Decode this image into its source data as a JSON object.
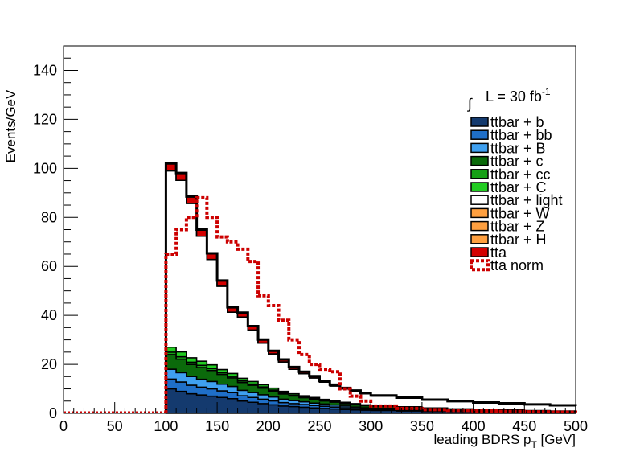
{
  "chart_data": {
    "type": "area",
    "xlabel_main": "leading BDRS p",
    "xlabel_sub": "T",
    "xlabel_unit": " [GeV]",
    "ylabel": "Events/GeV",
    "xlim": [
      0,
      500
    ],
    "ylim": [
      0,
      150
    ],
    "x_ticks": [
      "0",
      "50",
      "100",
      "150",
      "200",
      "250",
      "300",
      "350",
      "400",
      "450",
      "500"
    ],
    "y_ticks": [
      "0",
      "20",
      "40",
      "60",
      "80",
      "100",
      "120",
      "140"
    ],
    "lumi_prefix": "L = 30 fb",
    "lumi_exp": "-1",
    "legend_position": "top-right",
    "grid": false,
    "x": [
      100,
      110,
      120,
      130,
      140,
      150,
      160,
      170,
      180,
      190,
      200,
      210,
      220,
      230,
      240,
      250,
      260,
      270,
      280,
      290,
      300,
      325,
      350,
      375,
      400,
      425,
      450,
      475,
      500
    ],
    "series": [
      {
        "name": "ttbar + b",
        "color": "#143a6e",
        "values": [
          10,
          9,
          8,
          7.5,
          7,
          6.5,
          6,
          5,
          4.5,
          4,
          3.5,
          3,
          2.8,
          2.5,
          2.2,
          2,
          1.8,
          1.6,
          1.4,
          1.3,
          1.2,
          1,
          0.8,
          0.7,
          0.6,
          0.5,
          0.4,
          0.35,
          0.3
        ]
      },
      {
        "name": "ttbar + bb",
        "color": "#1f6fc8",
        "values": [
          4,
          3.8,
          3.5,
          3.2,
          3,
          2.7,
          2.5,
          2.2,
          2,
          1.8,
          1.6,
          1.4,
          1.2,
          1.1,
          1,
          0.9,
          0.8,
          0.7,
          0.6,
          0.5,
          0.45,
          0.4,
          0.3,
          0.25,
          0.2,
          0.2,
          0.15,
          0.12,
          0.1
        ]
      },
      {
        "name": "ttbar + B",
        "color": "#3fa0f0",
        "values": [
          4,
          3.8,
          3.5,
          3.2,
          3,
          2.7,
          2.5,
          2.2,
          2,
          1.8,
          1.6,
          1.4,
          1.2,
          1.1,
          1,
          0.9,
          0.8,
          0.7,
          0.6,
          0.5,
          0.45,
          0.4,
          0.3,
          0.25,
          0.2,
          0.2,
          0.15,
          0.12,
          0.1
        ]
      },
      {
        "name": "ttbar + c",
        "color": "#0b6a0b",
        "values": [
          6,
          5.5,
          5,
          4.8,
          4.5,
          4,
          3.5,
          3.2,
          3,
          2.7,
          2.4,
          2.1,
          1.9,
          1.7,
          1.5,
          1.3,
          1.2,
          1,
          0.9,
          0.8,
          0.7,
          0.6,
          0.5,
          0.4,
          0.35,
          0.3,
          0.25,
          0.2,
          0.2
        ]
      },
      {
        "name": "ttbar + cc",
        "color": "#16a016",
        "values": [
          1,
          1,
          0.9,
          0.9,
          0.8,
          0.7,
          0.6,
          0.6,
          0.5,
          0.5,
          0.4,
          0.4,
          0.3,
          0.3,
          0.3,
          0.2,
          0.2,
          0.2,
          0.2,
          0.1,
          0.1,
          0.1,
          0.1,
          0.1,
          0.1,
          0.1,
          0.1,
          0.1,
          0.1
        ]
      },
      {
        "name": "ttbar + C",
        "color": "#22cc22",
        "values": [
          2,
          2,
          1.8,
          1.7,
          1.5,
          1.3,
          1.2,
          1.1,
          1,
          0.9,
          0.8,
          0.7,
          0.6,
          0.5,
          0.5,
          0.4,
          0.4,
          0.3,
          0.3,
          0.3,
          0.2,
          0.2,
          0.2,
          0.15,
          0.1,
          0.1,
          0.1,
          0.1,
          0.1
        ]
      },
      {
        "name": "ttbar + light",
        "color": "#ffffff",
        "values": [
          72,
          70,
          63,
          51,
          43,
          34,
          25,
          25,
          21,
          17,
          14,
          12,
          10,
          9,
          8,
          7,
          6,
          5.5,
          5,
          4.5,
          4,
          3.5,
          3.3,
          3,
          2.8,
          2.6,
          2.4,
          2.2,
          2
        ]
      },
      {
        "name": "ttbar + W",
        "color": "#ffa040",
        "values": [
          0,
          0,
          0,
          0,
          0,
          0,
          0,
          0,
          0,
          0,
          0,
          0,
          0,
          0,
          0,
          0,
          0,
          0,
          0,
          0,
          0,
          0,
          0,
          0,
          0,
          0,
          0,
          0,
          0
        ]
      },
      {
        "name": "ttbar + Z",
        "color": "#ffa040",
        "values": [
          0,
          0,
          0,
          0,
          0,
          0,
          0,
          0,
          0,
          0,
          0,
          0,
          0,
          0,
          0,
          0,
          0,
          0,
          0,
          0,
          0,
          0,
          0,
          0,
          0,
          0,
          0,
          0,
          0
        ]
      },
      {
        "name": "ttbar + H",
        "color": "#ffa040",
        "values": [
          0,
          0,
          0,
          0,
          0,
          0,
          0,
          0,
          0,
          0,
          0,
          0,
          0,
          0,
          0,
          0,
          0,
          0,
          0,
          0,
          0,
          0,
          0,
          0,
          0,
          0,
          0,
          0,
          0
        ]
      },
      {
        "name": "tta",
        "color": "#d40000",
        "values": [
          3,
          3,
          2.8,
          2.7,
          2.5,
          2.3,
          2,
          1.8,
          1.6,
          1.4,
          1.2,
          1,
          0.9,
          0.8,
          0.7,
          0.6,
          0.5,
          0.4,
          0.3,
          0.3,
          0.2,
          0.2,
          0.1,
          0.1,
          0.1,
          0.1,
          0.1,
          0.1,
          0.1
        ]
      }
    ],
    "overlay": {
      "name": "tta norm",
      "color": "#cc0000",
      "values": [
        65,
        75,
        80,
        88,
        80,
        72,
        70,
        67,
        62,
        48,
        44,
        38,
        30,
        24,
        20,
        18,
        17,
        10,
        7,
        5,
        3,
        2,
        1.5,
        1.2,
        1,
        0.8,
        0.6,
        0.5,
        0.4
      ]
    }
  }
}
